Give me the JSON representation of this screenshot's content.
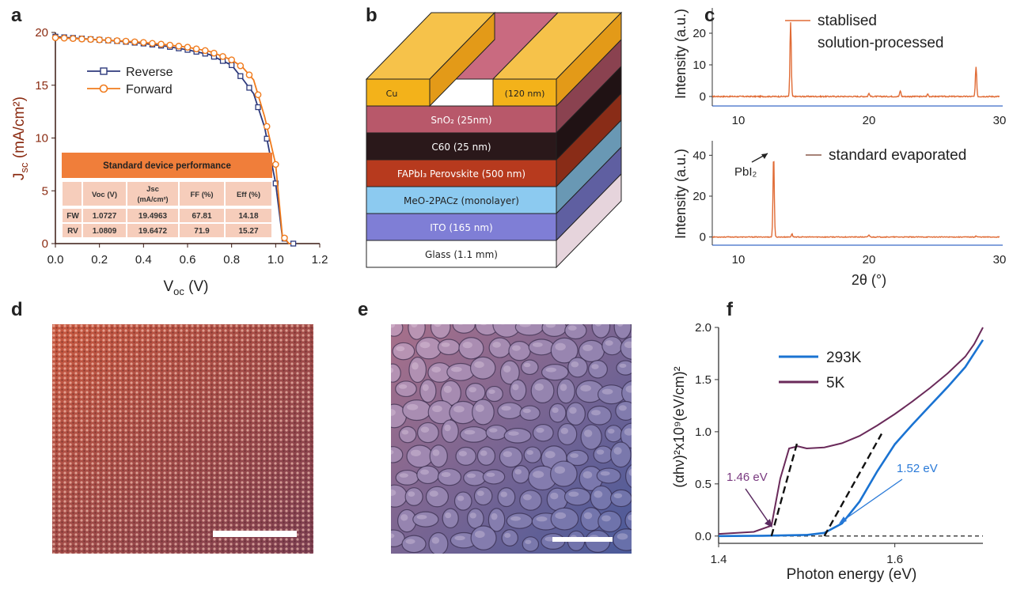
{
  "panels": {
    "a": "a",
    "b": "b",
    "c": "c",
    "d": "d",
    "e": "e",
    "f": "f"
  },
  "panel_a": {
    "ylabel_main": "J",
    "ylabel_sub": "sc",
    "ylabel_rest": " (mA/cm²)",
    "xlabel_main": "V",
    "xlabel_sub": "oc",
    "xlabel_rest": " (V)",
    "colors": {
      "reverse": "#2e3a7c",
      "forward": "#f07b1d",
      "axis": "#3a1a12",
      "table_header": "#f07e3a",
      "table_row": "#f6cdbb"
    },
    "table": {
      "title": "Standard device performance",
      "headers": [
        "",
        "Voc (V)",
        "Jsc (mA/cm²)",
        "FF (%)",
        "Eff (%)"
      ],
      "rows": [
        [
          "FW",
          "1.0727",
          "19.4963",
          "67.81",
          "14.18"
        ],
        [
          "RV",
          "1.0809",
          "19.6472",
          "71.9",
          "15.27"
        ]
      ]
    }
  },
  "panel_b": {
    "colors": {
      "cu": "#f3b21a",
      "sno2": "#b8586a",
      "c60": "#2a181a",
      "perovskite": "#b73a1e",
      "meo": "#8ccaf0",
      "ito": "#7f7ed6",
      "glass": "#ffffff"
    },
    "cu_left": "Cu",
    "cu_right": "(120 nm)",
    "layers": [
      {
        "name": "sno2",
        "label": "SnO₂ (25nm)"
      },
      {
        "name": "c60",
        "label": "C60 (25 nm)"
      },
      {
        "name": "perovskite",
        "label": "FAPbI₃ Perovskite (500 nm)"
      },
      {
        "name": "meo",
        "label": "MeO-2PACz (monolayer)"
      },
      {
        "name": "ito",
        "label": "ITO (165 nm)"
      },
      {
        "name": "glass",
        "label": "Glass (1.1 mm)"
      }
    ]
  },
  "panel_c": {
    "ylabel": "Intensity (a.u.)",
    "xlabel": "2θ (°)",
    "top_legend_1": "stablised",
    "top_legend_2": "solution-processed",
    "bottom_legend": "standard evaporated",
    "annotation": "PbI₂",
    "colors": {
      "line": "#e06b35",
      "axis": "#3a6ac8"
    }
  },
  "panel_d": {
    "colors": {
      "from": "#c8583f",
      "to": "#7c3f52"
    }
  },
  "panel_e": {
    "colors": {
      "from": "#9a6a8a",
      "to": "#4a5a9a"
    }
  },
  "panel_f": {
    "ylabel": "(αhν)²x10⁹(eV/cm)²",
    "xlabel": "Photon energy (eV)",
    "annot_5k": "1.46 eV",
    "annot_293k": "1.52 eV",
    "colors": {
      "293K": "#1a73d2",
      "5K": "#6a2a5a",
      "annot_5k": "#7a3a80",
      "annot_293k": "#2a7ad8"
    }
  },
  "chart_data": [
    {
      "type": "line",
      "panel": "a",
      "xlabel": "Voc (V)",
      "ylabel": "Jsc (mA/cm²)",
      "xlim": [
        0.0,
        1.2
      ],
      "ylim": [
        0,
        20
      ],
      "xticks": [
        "0.0",
        "0.2",
        "0.4",
        "0.6",
        "0.8",
        "1.0",
        "1.2"
      ],
      "yticks": [
        "0",
        "5",
        "10",
        "15",
        "20"
      ],
      "legend_position": "upper-left",
      "series": [
        {
          "name": "Reverse",
          "marker": "square",
          "x": [
            0.0,
            0.1,
            0.2,
            0.3,
            0.4,
            0.5,
            0.6,
            0.7,
            0.8,
            0.85,
            0.9,
            0.95,
            1.0,
            1.03,
            1.06,
            1.08
          ],
          "y": [
            19.6,
            19.45,
            19.3,
            19.15,
            18.95,
            18.7,
            18.35,
            17.9,
            16.9,
            15.6,
            14.2,
            11.0,
            5.7,
            0.7,
            0.0,
            0.0
          ]
        },
        {
          "name": "Forward",
          "marker": "circle",
          "x": [
            0.0,
            0.1,
            0.2,
            0.3,
            0.4,
            0.5,
            0.6,
            0.7,
            0.8,
            0.85,
            0.9,
            0.95,
            1.0,
            1.03,
            1.06,
            1.07
          ],
          "y": [
            19.5,
            19.4,
            19.3,
            19.2,
            19.05,
            18.85,
            18.6,
            18.2,
            17.4,
            16.7,
            15.5,
            12.0,
            7.5,
            0.8,
            0.0,
            0.0
          ]
        }
      ]
    },
    {
      "type": "line",
      "panel": "c-top",
      "xlabel": "2θ (°)",
      "ylabel": "Intensity (a.u.)",
      "xlim": [
        8,
        30
      ],
      "ylim": [
        -3,
        26
      ],
      "xticks": [
        "10",
        "20",
        "30"
      ],
      "yticks": [
        "0",
        "10",
        "20"
      ],
      "series": [
        {
          "name": "stablised solution-processed",
          "peaks": [
            {
              "x": 14.0,
              "y": 23.5
            },
            {
              "x": 20.0,
              "y": 1.0
            },
            {
              "x": 22.4,
              "y": 1.8
            },
            {
              "x": 24.5,
              "y": 0.8
            },
            {
              "x": 28.2,
              "y": 9.5
            }
          ]
        }
      ]
    },
    {
      "type": "line",
      "panel": "c-bottom",
      "xlabel": "2θ (°)",
      "ylabel": "Intensity (a.u.)",
      "xlim": [
        8,
        30
      ],
      "ylim": [
        -4,
        44
      ],
      "xticks": [
        "10",
        "20",
        "30"
      ],
      "yticks": [
        "0",
        "20",
        "40"
      ],
      "series": [
        {
          "name": "standard evaporated",
          "peaks": [
            {
              "x": 12.7,
              "y": 40
            },
            {
              "x": 14.1,
              "y": 1.5
            },
            {
              "x": 20.0,
              "y": 1.0
            },
            {
              "x": 28.2,
              "y": 0.5
            }
          ]
        }
      ]
    },
    {
      "type": "line",
      "panel": "f",
      "xlabel": "Photon energy (eV)",
      "ylabel": "(αhν)²x10⁹(eV/cm)²",
      "xlim": [
        1.4,
        1.7
      ],
      "ylim": [
        -0.07,
        2.0
      ],
      "xticks": [
        "1.4",
        "1.6"
      ],
      "yticks": [
        "0.0",
        "0.5",
        "1.0",
        "1.5",
        "2.0"
      ],
      "legend_position": "upper-left",
      "series": [
        {
          "name": "293K",
          "x": [
            1.4,
            1.45,
            1.5,
            1.52,
            1.54,
            1.56,
            1.58,
            1.6,
            1.62,
            1.64,
            1.66,
            1.68,
            1.7
          ],
          "y": [
            0.0,
            0.003,
            0.01,
            0.03,
            0.12,
            0.33,
            0.62,
            0.88,
            1.07,
            1.25,
            1.43,
            1.62,
            1.88
          ]
        },
        {
          "name": "5K",
          "x": [
            1.4,
            1.44,
            1.46,
            1.47,
            1.48,
            1.49,
            1.5,
            1.52,
            1.54,
            1.56,
            1.58,
            1.6,
            1.62,
            1.64,
            1.66,
            1.68,
            1.69,
            1.7
          ],
          "y": [
            0.02,
            0.04,
            0.1,
            0.55,
            0.84,
            0.86,
            0.84,
            0.85,
            0.89,
            0.96,
            1.06,
            1.17,
            1.29,
            1.42,
            1.56,
            1.72,
            1.84,
            2.0
          ]
        }
      ]
    }
  ]
}
